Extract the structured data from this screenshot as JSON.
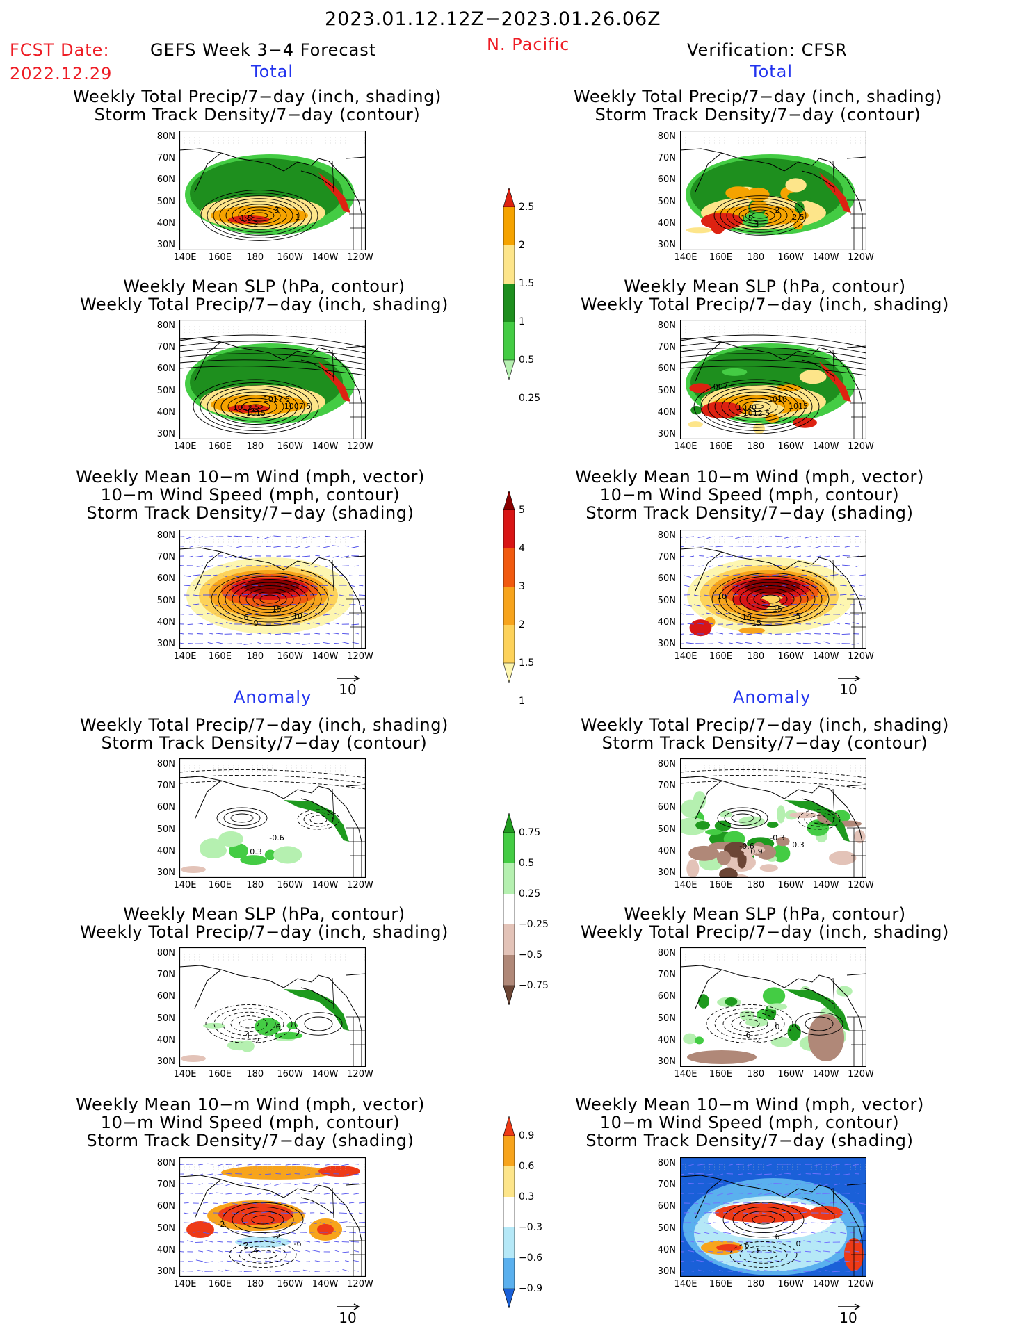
{
  "header": {
    "date_range": "2023.01.12.12Z−2023.01.26.06Z",
    "fcst_label": "FCST Date:",
    "fcst_date": "2022.12.29",
    "forecast_title": "GEFS Week 3−4 Forecast",
    "region": "N. Pacific",
    "verification": "Verification: CFSR"
  },
  "sections": {
    "total": "Total",
    "anomaly": "Anomaly"
  },
  "panel_titles": {
    "precip_storm": [
      "Weekly Total Precip/7−day (inch, shading)",
      "Storm Track Density/7−day (contour)"
    ],
    "slp_precip": [
      "Weekly Mean SLP (hPa, contour)",
      "Weekly Total Precip/7−day (inch, shading)"
    ],
    "wind_storm": [
      "Weekly Mean 10−m Wind (mph, vector)",
      "10−m Wind Speed (mph, contour)",
      "Storm Track Density/7−day (shading)"
    ]
  },
  "axes": {
    "lat_labels": [
      "80N",
      "70N",
      "60N",
      "50N",
      "40N",
      "30N"
    ],
    "lon_labels": [
      "140E",
      "160E",
      "180",
      "160W",
      "140W",
      "120W"
    ]
  },
  "vector_reference": "10",
  "colorbars": {
    "precip_total": {
      "labels": [
        "2.5",
        "2",
        "1.5",
        "1",
        "0.5",
        "0.25"
      ],
      "colors": [
        "#dd2211",
        "#f5a300",
        "#fde58a",
        "#1e8f1e",
        "#44cc44",
        "#b5f0b0"
      ]
    },
    "storm_total": {
      "labels": [
        "5",
        "4",
        "3",
        "2",
        "1.5",
        "1"
      ],
      "colors": [
        "#8b0000",
        "#d81515",
        "#f15a0f",
        "#f7a41c",
        "#fdd25a",
        "#fdf6b0"
      ]
    },
    "precip_anom": {
      "labels": [
        "0.75",
        "0.5",
        "0.25",
        "−0.25",
        "−0.5",
        "−0.75"
      ],
      "colors": [
        "#1e9a1e",
        "#44cc44",
        "#b5f0b0",
        "#ffffff",
        "#e3c3b8",
        "#b08878",
        "#6b4535"
      ]
    },
    "storm_anom": {
      "labels": [
        "0.9",
        "0.6",
        "0.3",
        "−0.3",
        "−0.6",
        "−0.9"
      ],
      "colors": [
        "#ee3a16",
        "#f7a41c",
        "#fde58a",
        "#ffffff",
        "#b5e8f7",
        "#5ab0ee",
        "#1a60d8"
      ]
    }
  },
  "panels": {
    "fc_total_precip": {
      "labels": [
        "3",
        "2",
        "1.5",
        "1"
      ]
    },
    "vf_total_precip": {
      "labels": [
        "2",
        "3",
        "1.5",
        "2.5"
      ]
    },
    "fc_total_slp": {
      "labels": [
        "1017.5",
        "1015",
        "1012.5",
        "1007.5"
      ]
    },
    "vf_total_slp": {
      "labels": [
        "1010",
        "1012.5",
        "1020",
        "1015",
        "1007.5"
      ]
    },
    "fc_total_wind": {
      "labels": [
        "15",
        "9",
        "6",
        "10"
      ]
    },
    "vf_total_wind": {
      "labels": [
        "15",
        "15",
        "10",
        "5",
        "10"
      ]
    },
    "fc_anom_precip": {
      "labels": [
        "-0.6",
        "0.3"
      ]
    },
    "vf_anom_precip": {
      "labels": [
        "-0.3",
        "0.9",
        "-0.6",
        "0.3"
      ]
    },
    "fc_anom_slp": {
      "labels": [
        "-6",
        "-2",
        "-4",
        "2"
      ]
    },
    "vf_anom_slp": {
      "labels": [
        "0",
        "-2",
        "-6"
      ]
    },
    "fc_anom_wind": {
      "labels": [
        "-2",
        "4",
        "2",
        "-6",
        "-2"
      ]
    },
    "vf_anom_wind": {
      "labels": [
        "6",
        "3",
        "6",
        "0"
      ]
    }
  }
}
